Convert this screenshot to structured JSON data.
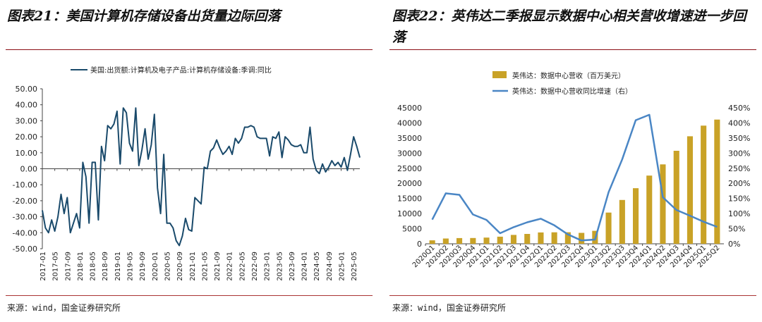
{
  "left": {
    "title": "图表21：美国计算机存储设备出货量边际回落",
    "source": "来源：wind，国金证券研究所"
  },
  "right": {
    "title": "图表22：英伟达二季报显示数据中心相关营收增速进一步回落",
    "source": "来源：wind，国金证券研究所"
  },
  "colors": {
    "line_left": "#1a4a6b",
    "bar": "#c9a227",
    "line_right": "#4a86c5",
    "rule": "#8b0f14"
  },
  "chart_data": [
    {
      "type": "line",
      "legend": "美国:出货额:计算机及电子产品:计算机存储设备:季调:同比",
      "legend_position": "top",
      "ylim": [
        -50,
        50
      ],
      "yticks": [
        "50.00",
        "40.00",
        "30.00",
        "20.00",
        "10.00",
        "0.00",
        "-10.00",
        "-20.00",
        "-30.00",
        "-40.00",
        "-50.00"
      ],
      "xticks": [
        "2017-01",
        "2017-05",
        "2017-09",
        "2018-01",
        "2018-05",
        "2018-09",
        "2019-01",
        "2019-05",
        "2019-09",
        "2020-01",
        "2020-05",
        "2020-09",
        "2021-01",
        "2021-05",
        "2021-09",
        "2022-01",
        "2022-05",
        "2022-09",
        "2023-01",
        "2023-05",
        "2023-09",
        "2024-01",
        "2024-05",
        "2024-09",
        "2025-01",
        "2025-05"
      ],
      "x_start": "2017-01",
      "series": [
        {
          "name": "美国:出货额:计算机及电子产品:计算机存储设备:季调:同比",
          "values": [
            -26,
            -37,
            -40,
            -32,
            -39,
            -30,
            -16,
            -28,
            -18,
            -40,
            -34,
            -28,
            -37,
            4,
            -5,
            -34,
            4,
            4,
            -32,
            14,
            5,
            27,
            25,
            28,
            36,
            3,
            38,
            35,
            16,
            11,
            38,
            2,
            12,
            25,
            6,
            15,
            34,
            -12,
            -28,
            9,
            -34,
            -34,
            -37,
            -45,
            -48,
            -42,
            -31,
            -38,
            -39,
            -18,
            -20,
            -22,
            1,
            0,
            11,
            13,
            18,
            13,
            9,
            11,
            14,
            9,
            19,
            16,
            19,
            26,
            26,
            27,
            26,
            20,
            19,
            19,
            19,
            8,
            20,
            19,
            23,
            7,
            20,
            18,
            15,
            14,
            14,
            15,
            10,
            10,
            26,
            6,
            -1,
            -3,
            3,
            -2,
            1,
            5,
            2,
            4,
            1,
            7,
            -1,
            9,
            20,
            14,
            7
          ]
        }
      ]
    },
    {
      "type": "bar+line",
      "categories": [
        "2020Q1",
        "2020Q2",
        "2020Q3",
        "2020Q4",
        "2021Q1",
        "2021Q2",
        "2021Q3",
        "2021Q4",
        "2022Q1",
        "2022Q2",
        "2022Q3",
        "2022Q4",
        "2023Q1",
        "2023Q2",
        "2023Q3",
        "2023Q4",
        "2024Q1",
        "2024Q2",
        "2024Q3",
        "2024Q4",
        "2025Q1",
        "2025Q2"
      ],
      "series": [
        {
          "name": "英伟达：数据中心营收（百万美元）",
          "type": "bar",
          "axis": "left",
          "values": [
            1141,
            1752,
            1900,
            1903,
            2048,
            2366,
            2936,
            3263,
            3750,
            3806,
            3833,
            3620,
            4284,
            10323,
            14514,
            18404,
            22563,
            26272,
            30771,
            35580,
            39112,
            41100
          ]
        },
        {
          "name": "英伟达：数据中心营收同比增速（右）",
          "type": "line",
          "axis": "right",
          "values": [
            80,
            167,
            162,
            97,
            79,
            35,
            55,
            71,
            83,
            61,
            31,
            11,
            14,
            171,
            279,
            409,
            427,
            154,
            112,
            93,
            73,
            56
          ]
        }
      ],
      "ylim_left": [
        0,
        45000
      ],
      "ylim_right": [
        0,
        450
      ],
      "yticks_left": [
        "0",
        "5000",
        "10000",
        "15000",
        "20000",
        "25000",
        "30000",
        "35000",
        "40000",
        "45000"
      ],
      "yticks_right": [
        "0%",
        "50%",
        "100%",
        "150%",
        "200%",
        "250%",
        "300%",
        "350%",
        "400%",
        "450%"
      ],
      "legend_position": "top-left"
    }
  ]
}
